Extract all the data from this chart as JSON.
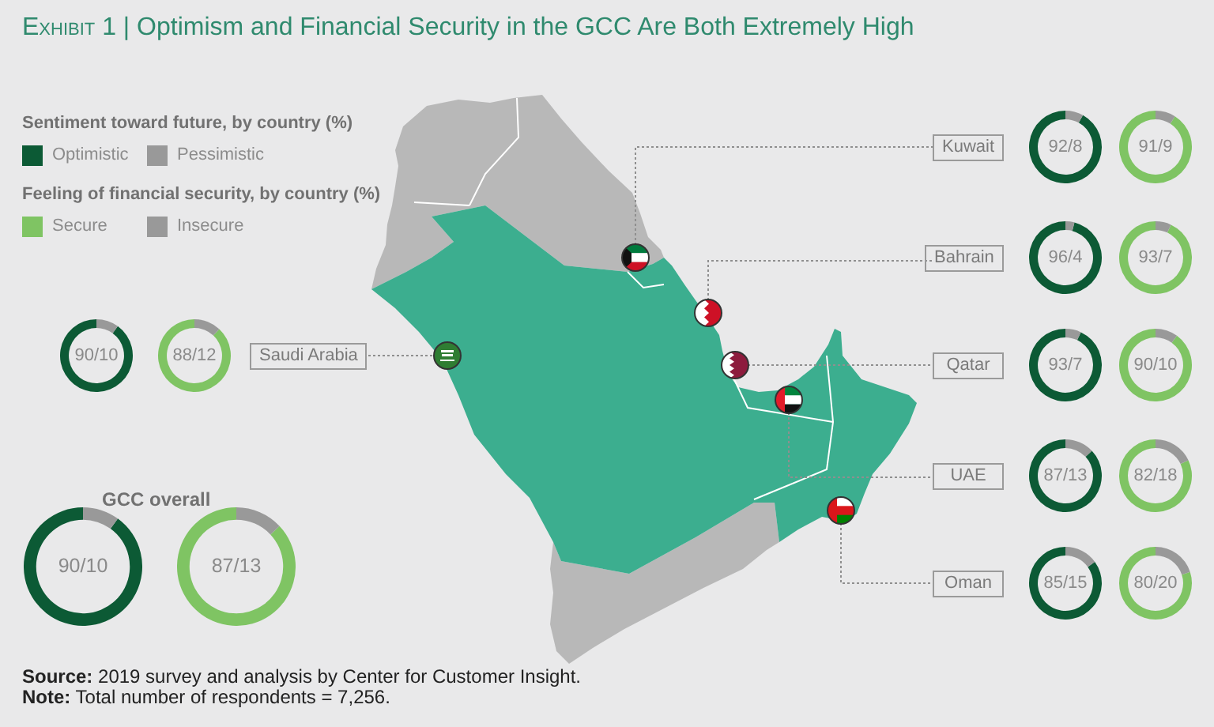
{
  "chart_data": [
    {
      "type": "other",
      "title": "Exhibit 1 | Optimism and Financial Security in the GCC Are Both Extremely High",
      "annotations": [
        "Source: 2019 survey and analysis by Center for Customer Insight.",
        "Note: Total number of respondents = 7,256."
      ]
    },
    {
      "type": "donut",
      "title": "Saudi Arabia",
      "legend_title": "Sentiment toward future, by country (%)",
      "legend": "top right",
      "categories": [
        "Optimistic",
        "Pessimistic"
      ],
      "values": [
        90,
        10
      ],
      "colors": [
        "#0c5a35",
        "#999999"
      ],
      "annotations": [
        "90/10"
      ]
    },
    {
      "type": "donut",
      "legend_title": "Feeling of financial security, by country (%)",
      "legend": "top left",
      "categories": [
        "Secure",
        "Insecure"
      ],
      "values": [
        88,
        12
      ],
      "colors": [
        "#7fc463",
        "#999999"
      ],
      "annotations": [
        "88/12"
      ]
    },
    {
      "type": "donut",
      "title": "GCC overall",
      "categories": [
        null,
        null
      ],
      "values": [
        90,
        10
      ],
      "colors": [
        "#0c5a35",
        "#999999"
      ],
      "annotations": [
        "90/10"
      ]
    },
    {
      "type": "donut",
      "categories": [
        null,
        null
      ],
      "values": [
        87,
        13
      ],
      "colors": [
        "#7fc463",
        "#999999"
      ],
      "annotations": [
        "87/13"
      ]
    },
    {
      "type": "donut",
      "title": "Kuwait",
      "categories": [
        null,
        null
      ],
      "values": [
        92,
        8
      ],
      "colors": [
        "#0c5a35",
        "#999999"
      ],
      "annotations": [
        "92/8"
      ]
    },
    {
      "type": "donut",
      "categories": [
        null,
        null
      ],
      "values": [
        91,
        9
      ],
      "colors": [
        "#7fc463",
        "#999999"
      ],
      "annotations": [
        "91/9"
      ]
    },
    {
      "type": "donut",
      "title": "Bahrain",
      "categories": [
        null,
        null
      ],
      "values": [
        96,
        4
      ],
      "colors": [
        "#0c5a35",
        "#999999"
      ],
      "annotations": [
        "96/4"
      ]
    },
    {
      "type": "donut",
      "categories": [
        null,
        null
      ],
      "values": [
        93,
        7
      ],
      "colors": [
        "#7fc463",
        "#999999"
      ],
      "annotations": [
        "93/7"
      ]
    },
    {
      "type": "donut",
      "title": "Qatar",
      "categories": [
        null,
        null
      ],
      "values": [
        93,
        7
      ],
      "colors": [
        "#0c5a35",
        "#999999"
      ],
      "annotations": [
        "93/7"
      ]
    },
    {
      "type": "donut",
      "categories": [
        null,
        null
      ],
      "values": [
        90,
        10
      ],
      "colors": [
        "#7fc463",
        "#999999"
      ],
      "annotations": [
        "90/10"
      ]
    },
    {
      "type": "donut",
      "title": "UAE",
      "categories": [
        null,
        null
      ],
      "values": [
        87,
        13
      ],
      "colors": [
        "#0c5a35",
        "#999999"
      ],
      "annotations": [
        "87/13"
      ]
    },
    {
      "type": "donut",
      "categories": [
        null,
        null
      ],
      "values": [
        82,
        18
      ],
      "colors": [
        "#7fc463",
        "#999999"
      ],
      "annotations": [
        "82/18"
      ]
    },
    {
      "type": "donut",
      "title": "Oman",
      "categories": [
        null,
        null
      ],
      "values": [
        85,
        15
      ],
      "colors": [
        "#0c5a35",
        "#999999"
      ],
      "annotations": [
        "85/15"
      ]
    },
    {
      "type": "donut",
      "categories": [
        null,
        null
      ],
      "values": [
        80,
        20
      ],
      "colors": [
        "#7fc463",
        "#999999"
      ],
      "annotations": [
        "80/20"
      ]
    }
  ]
}
